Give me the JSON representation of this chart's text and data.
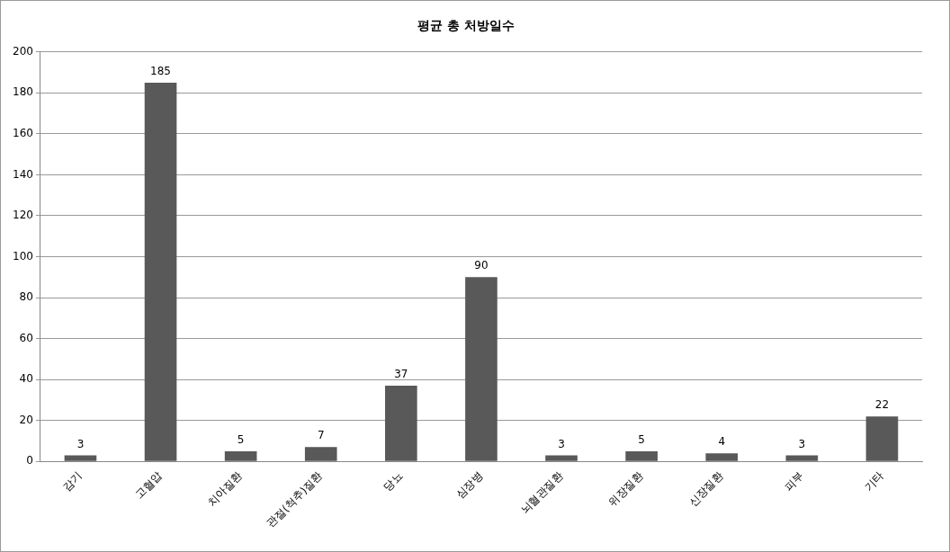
{
  "chart_data": {
    "type": "bar",
    "title": "평균 총 처방일수",
    "categories": [
      "감기",
      "고혈압",
      "치아질환",
      "관절(척추)질환",
      "당뇨",
      "심장병",
      "뇌혈관질환",
      "위장질환",
      "신장질환",
      "피부",
      "기타"
    ],
    "values": [
      3,
      185,
      5,
      7,
      37,
      90,
      3,
      5,
      4,
      3,
      22
    ],
    "color": "#595959",
    "ylim": [
      0,
      200
    ],
    "yticks": [
      0,
      20,
      40,
      60,
      80,
      100,
      120,
      140,
      160,
      180,
      200
    ],
    "grid": "y",
    "data_labels": true,
    "legend": false
  }
}
